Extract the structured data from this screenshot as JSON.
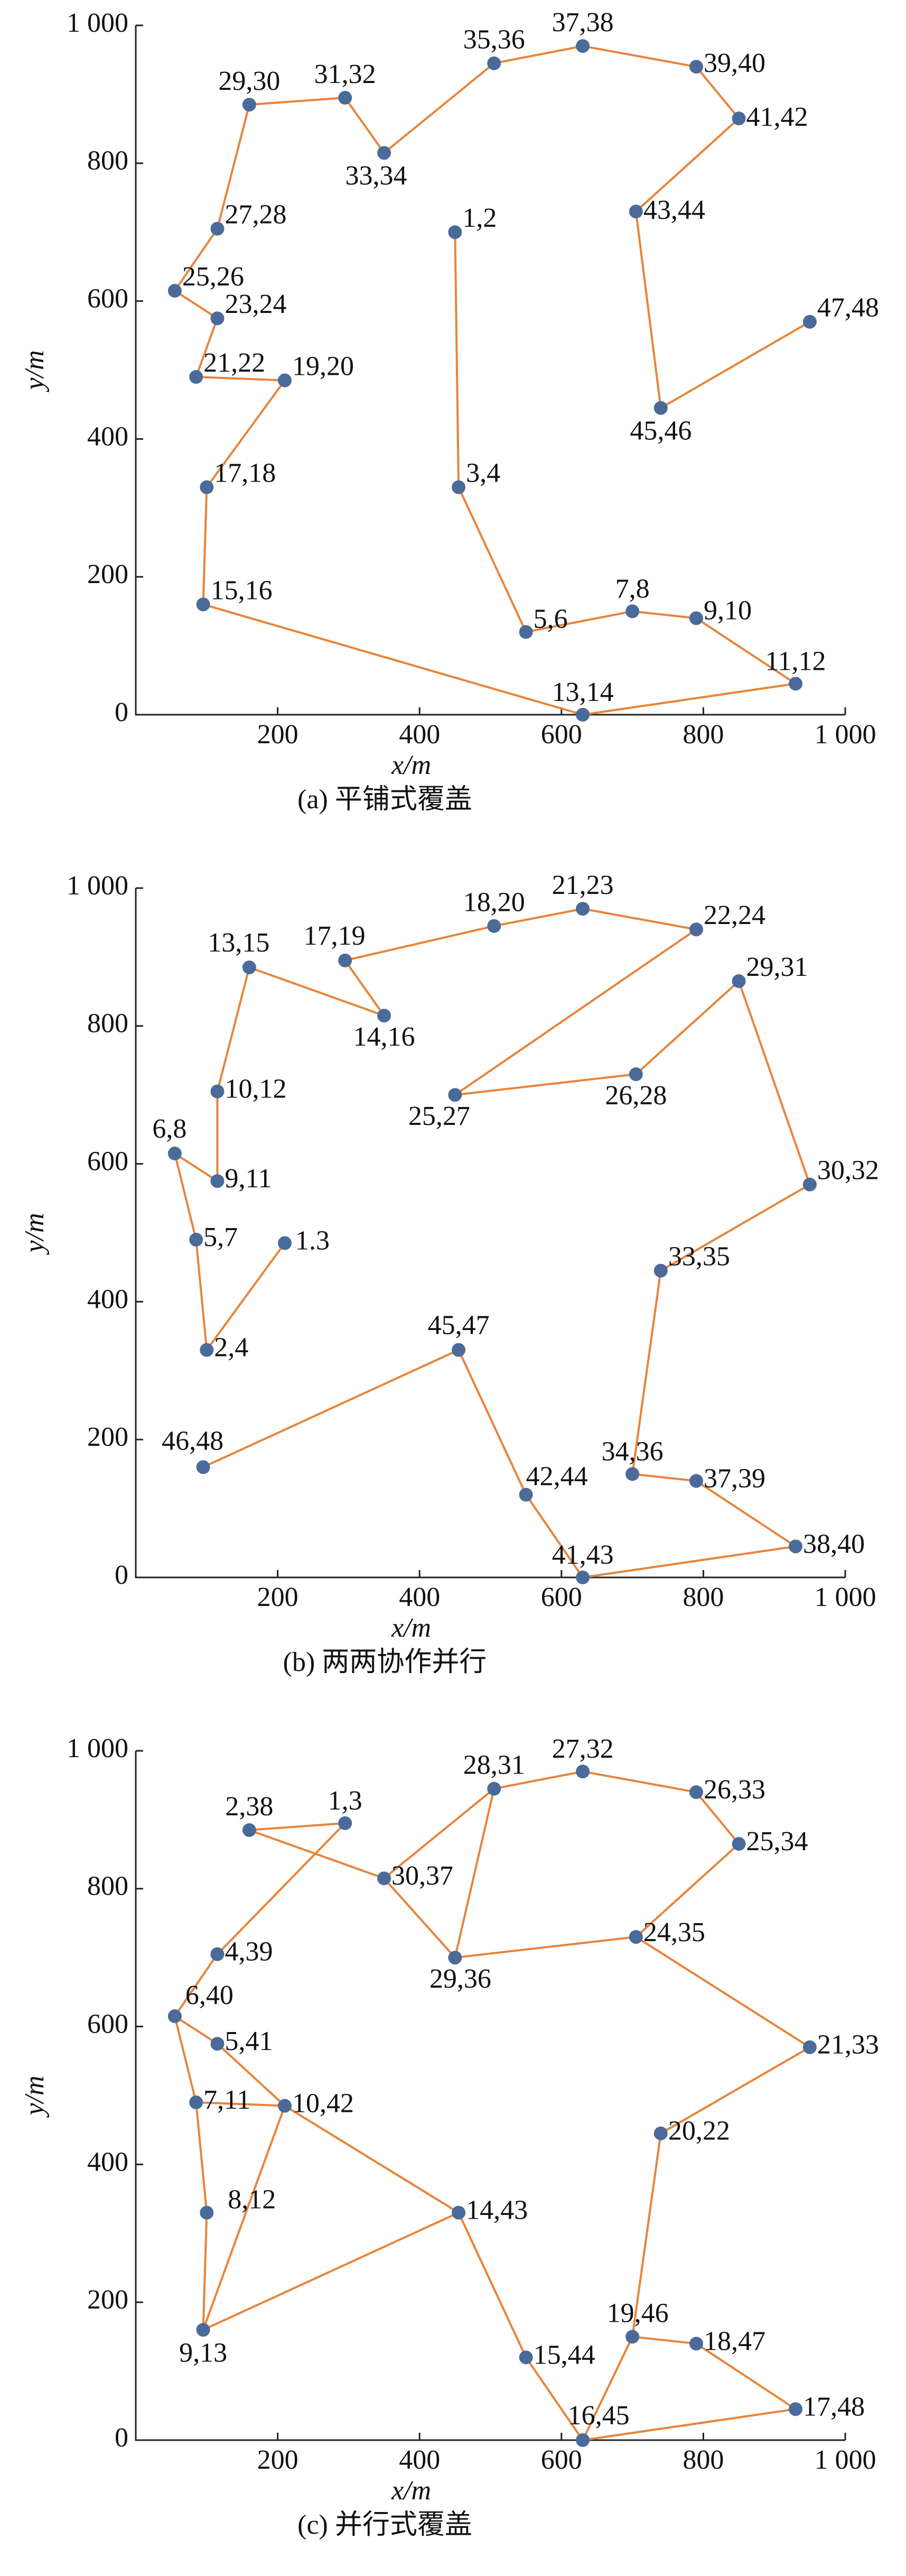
{
  "chart_data": [
    {
      "type": "line",
      "caption": "(a) 平铺式覆盖",
      "xlabel": "x/m",
      "ylabel": "y/m",
      "xlim": [
        0,
        1000
      ],
      "ylim": [
        0,
        1000
      ],
      "xticks": [
        200,
        400,
        600,
        800,
        {
          "value": 1000,
          "label": "1 000"
        }
      ],
      "yticks": [
        0,
        200,
        400,
        600,
        800,
        {
          "value": 1000,
          "label": "1 000"
        }
      ],
      "line_color": "#e8843a",
      "marker_color": "#4a6b9a",
      "labels": [
        "1,2",
        "3,4",
        "5,6",
        "7,8",
        "9,10",
        "11,12",
        "13,14",
        "15,16",
        "17,18",
        "19,20",
        "21,22",
        "23,24",
        "25,26",
        "27,28",
        "29,30",
        "31,32",
        "33,34",
        "35,36",
        "37,38",
        "39,40",
        "41,42",
        "43,44",
        "45,46",
        "47,48"
      ],
      "x": [
        450,
        455,
        550,
        700,
        790,
        930,
        630,
        95,
        100,
        210,
        85,
        115,
        55,
        115,
        160,
        295,
        350,
        505,
        630,
        790,
        850,
        705,
        740,
        950
      ],
      "y": [
        700,
        330,
        120,
        150,
        140,
        45,
        0,
        160,
        330,
        485,
        490,
        575,
        615,
        705,
        885,
        895,
        815,
        945,
        970,
        940,
        865,
        730,
        445,
        570
      ]
    },
    {
      "type": "line",
      "caption": "(b) 两两协作并行",
      "xlabel": "x/m",
      "ylabel": "y/m",
      "xlim": [
        0,
        1000
      ],
      "ylim": [
        0,
        1000
      ],
      "xticks": [
        200,
        400,
        600,
        800,
        {
          "value": 1000,
          "label": "1 000"
        }
      ],
      "yticks": [
        0,
        200,
        400,
        600,
        800,
        {
          "value": 1000,
          "label": "1 000"
        }
      ],
      "line_color": "#e8843a",
      "marker_color": "#4a6b9a",
      "labels": [
        "1.3",
        "2,4",
        "5,7",
        "6,8",
        "9,11",
        "10,12",
        "13,15",
        "14,16",
        "17,19",
        "18,20",
        "21,23",
        "22,24",
        "25,27",
        "26,28",
        "29,31",
        "30,32",
        "33,35",
        "34,36",
        "37,39",
        "38,40",
        "41,43",
        "42,44",
        "45,47",
        "46,48"
      ],
      "x": [
        210,
        100,
        85,
        55,
        115,
        115,
        160,
        350,
        295,
        505,
        630,
        790,
        450,
        705,
        850,
        950,
        740,
        700,
        790,
        930,
        630,
        550,
        455,
        95
      ],
      "y": [
        485,
        330,
        490,
        615,
        575,
        705,
        885,
        815,
        895,
        945,
        970,
        940,
        700,
        730,
        865,
        570,
        445,
        150,
        140,
        45,
        0,
        120,
        330,
        160
      ]
    },
    {
      "type": "scatter",
      "caption": "(c) 并行式覆盖",
      "xlabel": "x/m",
      "ylabel": "y/m",
      "xlim": [
        0,
        1000
      ],
      "ylim": [
        0,
        1000
      ],
      "xticks": [
        200,
        400,
        600,
        800,
        {
          "value": 1000,
          "label": "1 000"
        }
      ],
      "yticks": [
        0,
        200,
        400,
        600,
        800,
        {
          "value": 1000,
          "label": "1 000"
        }
      ],
      "line_color": "#e8843a",
      "marker_color": "#4a6b9a",
      "labels": [
        "1,3",
        "2,38",
        "4,39",
        "5,41",
        "6,40",
        "7,11",
        "8,12",
        "9,13",
        "10,42",
        "14,43",
        "15,44",
        "16,45",
        "17,48",
        "18,47",
        "19,46",
        "20,22",
        "21,33",
        "24,35",
        "25,34",
        "26,33",
        "27,32",
        "28,31",
        "29,36",
        "30,37"
      ],
      "x": [
        295,
        160,
        115,
        115,
        55,
        85,
        100,
        95,
        210,
        455,
        550,
        630,
        930,
        790,
        700,
        740,
        950,
        705,
        850,
        790,
        630,
        505,
        450,
        350
      ],
      "y": [
        895,
        885,
        705,
        575,
        615,
        490,
        330,
        160,
        485,
        330,
        120,
        0,
        45,
        140,
        150,
        445,
        570,
        730,
        865,
        940,
        970,
        945,
        700,
        815
      ],
      "path_x": [
        350,
        160,
        295,
        115,
        55,
        115,
        210,
        85,
        55,
        null,
        85,
        100,
        95,
        210,
        455,
        95,
        null,
        455,
        550,
        630,
        930,
        790,
        700,
        630,
        null,
        700,
        740,
        950,
        705,
        850,
        790,
        630,
        505,
        450,
        705,
        null,
        505,
        350,
        450
      ],
      "path_y": [
        815,
        885,
        895,
        705,
        615,
        575,
        485,
        490,
        615,
        null,
        490,
        330,
        160,
        485,
        330,
        160,
        null,
        330,
        120,
        0,
        45,
        140,
        150,
        0,
        null,
        150,
        445,
        570,
        730,
        865,
        940,
        970,
        945,
        700,
        730,
        null,
        945,
        815,
        700
      ]
    }
  ]
}
